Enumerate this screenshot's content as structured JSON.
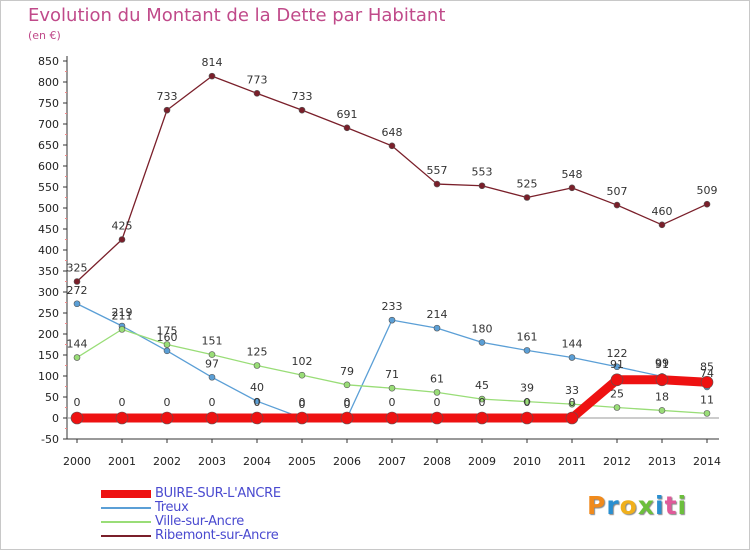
{
  "header": {
    "title": "Evolution du Montant de la Dette par Habitant",
    "unit": "(en €)"
  },
  "chart_data": {
    "type": "line",
    "title": "Evolution du Montant de la Dette par Habitant",
    "ylabel": "(en €)",
    "xlabel": "",
    "x": [
      "2000",
      "2001",
      "2002",
      "2003",
      "2004",
      "2005",
      "2006",
      "2007",
      "2008",
      "2009",
      "2010",
      "2011",
      "2012",
      "2013",
      "2014"
    ],
    "ylim": [
      -50,
      850
    ],
    "yticks": [
      -50,
      0,
      50,
      100,
      150,
      200,
      250,
      300,
      350,
      400,
      450,
      500,
      550,
      600,
      650,
      700,
      750,
      800,
      850
    ],
    "grid": false,
    "legend": "bottom-left",
    "series": [
      {
        "name": "Ribemont-sur-Ancre",
        "color": "#7a1f2a",
        "values": [
          325,
          425,
          733,
          814,
          773,
          733,
          691,
          648,
          557,
          553,
          525,
          548,
          507,
          460,
          509
        ],
        "labels": [
          "325",
          "425",
          "733",
          "814",
          "773",
          "733",
          "691",
          "648",
          "557",
          "553",
          "525",
          "548",
          "507",
          "460",
          "509"
        ]
      },
      {
        "name": "Treux",
        "color": "#5b9fd6",
        "values": [
          272,
          219,
          160,
          97,
          40,
          0,
          0,
          233,
          214,
          180,
          161,
          144,
          122,
          99,
          74
        ],
        "labels": [
          "272",
          "219",
          "160",
          "97",
          "40",
          "0",
          "0",
          "233",
          "214",
          "180",
          "161",
          "144",
          "122",
          "99",
          "74"
        ]
      },
      {
        "name": "Ville-sur-Ancre",
        "color": "#99dd77",
        "values": [
          144,
          211,
          175,
          151,
          125,
          102,
          79,
          71,
          61,
          45,
          39,
          33,
          25,
          18,
          11
        ],
        "labels": [
          "144",
          "211",
          "175",
          "151",
          "125",
          "102",
          "79",
          "71",
          "61",
          "45",
          "39",
          "33",
          "25",
          "18",
          "11"
        ]
      },
      {
        "name": "BUIRE-SUR-L'ANCRE",
        "color": "#ee1111",
        "values": [
          0,
          0,
          0,
          0,
          0,
          0,
          0,
          0,
          0,
          0,
          0,
          0,
          91,
          91,
          85
        ],
        "labels": [
          "0",
          "0",
          "0",
          "0",
          "0",
          "0",
          "0",
          "0",
          "0",
          "0",
          "0",
          "0",
          "91",
          "91",
          "85"
        ]
      }
    ]
  },
  "legend": {
    "items": [
      {
        "label": "BUIRE-SUR-L'ANCRE",
        "color": "#ee1111"
      },
      {
        "label": "Treux",
        "color": "#5b9fd6"
      },
      {
        "label": "Ville-sur-Ancre",
        "color": "#99dd77"
      },
      {
        "label": "Ribemont-sur-Ancre",
        "color": "#7a1f2a"
      }
    ]
  },
  "logo": {
    "letters": [
      "P",
      "r",
      "o",
      "x",
      "i",
      "t",
      "i"
    ],
    "colors": [
      "#f08a1c",
      "#2a8fd0",
      "#f0b01c",
      "#6cbf3c",
      "#2a8fd0",
      "#e05a9a",
      "#6cbf3c"
    ]
  }
}
